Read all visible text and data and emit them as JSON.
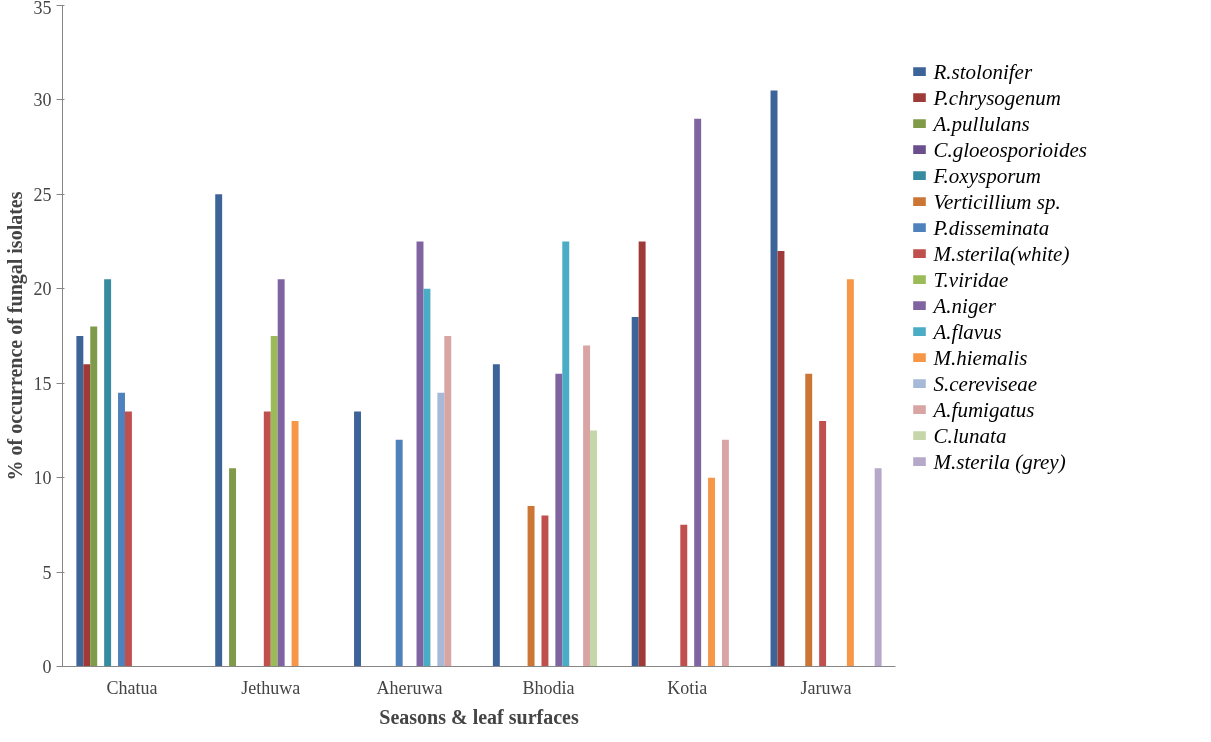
{
  "chart_data": {
    "type": "bar",
    "xlabel": "Seasons & leaf surfaces",
    "ylabel": "% of occurrence of fungal isolates",
    "categories": [
      "Chatua",
      "Jethuwa",
      "Aheruwa",
      "Bhodia",
      "Kotia",
      "Jaruwa"
    ],
    "ylim": [
      0,
      35
    ],
    "yticks": [
      0,
      5,
      10,
      15,
      20,
      25,
      30,
      35
    ],
    "grid": false,
    "legend": "right",
    "series": [
      {
        "name": "R.stolonifer",
        "color": "#3c6499",
        "values": [
          17.5,
          25,
          13.5,
          16,
          18.5,
          30.5
        ]
      },
      {
        "name": "P.chrysogenum",
        "color": "#9e3b38",
        "values": [
          16,
          null,
          null,
          null,
          22.5,
          22
        ]
      },
      {
        "name": "A.pullulans",
        "color": "#7f9a48",
        "values": [
          18,
          10.5,
          null,
          null,
          null,
          null
        ]
      },
      {
        "name": "C.gloeosporioides",
        "color": "#6a4f8c",
        "values": [
          null,
          null,
          null,
          null,
          null,
          null
        ]
      },
      {
        "name": "F.oxysporum",
        "color": "#358ba0",
        "values": [
          20.5,
          null,
          null,
          null,
          null,
          null
        ]
      },
      {
        "name": "Verticillium sp.",
        "color": "#cb7634",
        "values": [
          null,
          null,
          null,
          8.5,
          null,
          15.5
        ]
      },
      {
        "name": "P.disseminata",
        "color": "#4f81bd",
        "values": [
          14.5,
          null,
          12,
          null,
          null,
          null
        ]
      },
      {
        "name": "M.sterila(white)",
        "color": "#c0504d",
        "values": [
          13.5,
          13.5,
          null,
          8,
          7.5,
          13
        ]
      },
      {
        "name": "T.viridae",
        "color": "#9bbb59",
        "values": [
          null,
          17.5,
          null,
          null,
          null,
          null
        ]
      },
      {
        "name": "A.niger",
        "color": "#8064a2",
        "values": [
          null,
          20.5,
          22.5,
          15.5,
          29,
          null
        ]
      },
      {
        "name": "A.flavus",
        "color": "#4bacc6",
        "values": [
          null,
          null,
          20,
          22.5,
          null,
          null
        ]
      },
      {
        "name": "M.hiemalis",
        "color": "#f79646",
        "values": [
          null,
          13,
          null,
          null,
          10,
          20.5
        ]
      },
      {
        "name": "S.cereviseae",
        "color": "#a7b9d8",
        "values": [
          null,
          null,
          14.5,
          null,
          null,
          null
        ]
      },
      {
        "name": "A.fumigatus",
        "color": "#d9a5a4",
        "values": [
          null,
          null,
          17.5,
          17,
          12,
          null
        ]
      },
      {
        "name": "C.lunata",
        "color": "#c5d6a8",
        "values": [
          null,
          null,
          null,
          12.5,
          null,
          null
        ]
      },
      {
        "name": "M.sterila (grey)",
        "color": "#b5a8c8",
        "values": [
          null,
          null,
          null,
          null,
          null,
          10.5
        ]
      }
    ]
  }
}
